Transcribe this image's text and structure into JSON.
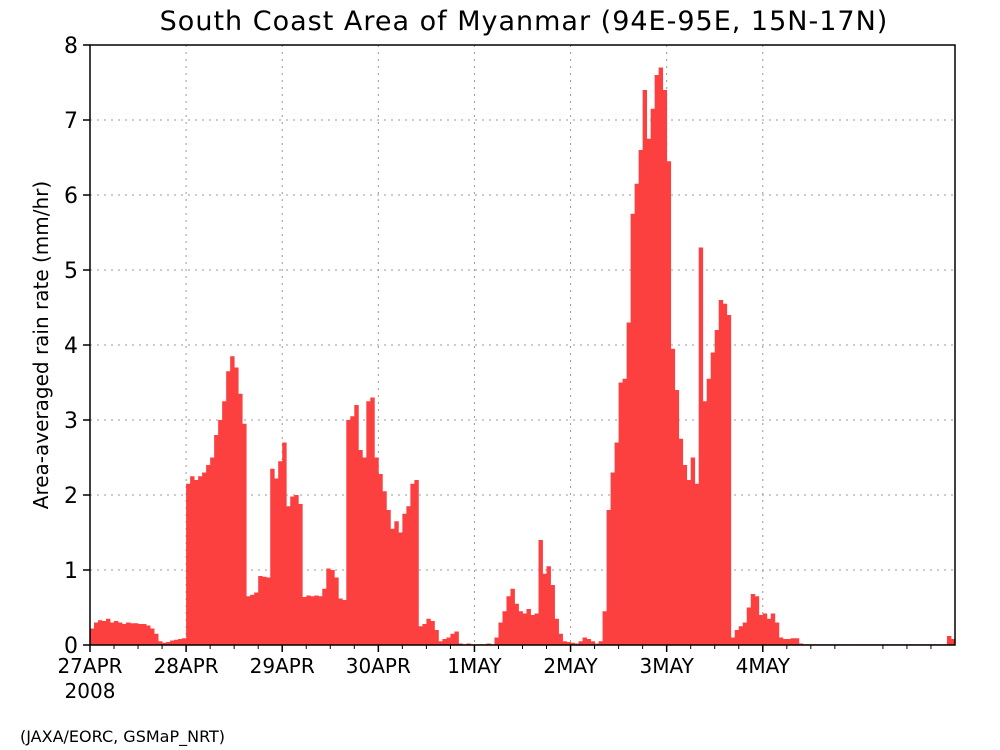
{
  "chart_data": {
    "type": "bar",
    "title": "South Coast Area of Myanmar (94E-95E, 15N-17N)",
    "ylabel": "Area-averaged rain rate (mm/hr)",
    "xlabel": "",
    "year_label": "2008",
    "credit": "(JAXA/EORC, GSMaP_NRT)",
    "x_tick_labels": [
      "27APR",
      "28APR",
      "29APR",
      "30APR",
      "1MAY",
      "2MAY",
      "3MAY",
      "4MAY"
    ],
    "y_ticks": [
      "0",
      "1",
      "2",
      "3",
      "4",
      "5",
      "6",
      "7",
      "8"
    ],
    "ylim": [
      0,
      8
    ],
    "bar_interval": "1 hour",
    "start_time": "27APR2008 00Z",
    "grid": true,
    "bar_color": "#fc4040",
    "values": [
      0.22,
      0.3,
      0.33,
      0.32,
      0.35,
      0.3,
      0.32,
      0.3,
      0.28,
      0.3,
      0.29,
      0.29,
      0.28,
      0.28,
      0.26,
      0.22,
      0.15,
      0.05,
      0.03,
      0.04,
      0.06,
      0.07,
      0.08,
      0.09,
      2.15,
      2.25,
      2.2,
      2.25,
      2.3,
      2.4,
      2.5,
      2.8,
      3.0,
      3.25,
      3.65,
      3.85,
      3.7,
      3.35,
      2.95,
      0.65,
      0.67,
      0.7,
      0.92,
      0.91,
      0.9,
      2.35,
      2.22,
      2.45,
      2.7,
      1.85,
      1.98,
      2.0,
      1.88,
      0.64,
      0.66,
      0.65,
      0.66,
      0.65,
      0.75,
      1.02,
      1.0,
      0.9,
      0.62,
      0.6,
      3.0,
      3.05,
      3.2,
      2.6,
      2.5,
      3.25,
      3.3,
      2.5,
      2.28,
      2.05,
      1.8,
      1.55,
      1.65,
      1.5,
      1.75,
      1.85,
      2.15,
      2.2,
      0.25,
      0.28,
      0.35,
      0.32,
      0.2,
      0.05,
      0.08,
      0.1,
      0.15,
      0.18,
      0.02,
      0.01,
      0.02,
      0.01,
      0.01,
      0.01,
      0.01,
      0.02,
      0.01,
      0.1,
      0.3,
      0.45,
      0.65,
      0.75,
      0.55,
      0.45,
      0.42,
      0.48,
      0.4,
      0.42,
      1.4,
      0.95,
      1.05,
      0.8,
      0.35,
      0.15,
      0.05,
      0.04,
      0.03,
      0.02,
      0.05,
      0.1,
      0.08,
      0.05,
      0.02,
      0.05,
      0.45,
      1.8,
      2.3,
      2.7,
      3.5,
      3.55,
      4.3,
      5.75,
      6.15,
      6.6,
      7.4,
      6.75,
      7.15,
      7.6,
      7.7,
      7.4,
      6.45,
      3.95,
      3.4,
      2.75,
      2.4,
      2.2,
      2.5,
      2.15,
      5.3,
      3.25,
      3.55,
      3.9,
      4.2,
      4.6,
      4.55,
      4.4,
      0.1,
      0.2,
      0.25,
      0.3,
      0.5,
      0.68,
      0.65,
      0.4,
      0.42,
      0.35,
      0.42,
      0.3,
      0.1,
      0.08,
      0.08,
      0.09,
      0.09,
      0.02,
      0.01,
      0.01,
      0.01,
      0.01,
      0.01,
      0.01,
      0.01,
      0.01,
      0.01,
      0.01,
      0.01,
      0.01,
      0.01,
      0.01,
      0.01,
      0.01,
      0.01,
      0.01,
      0.01,
      0.01,
      0.01,
      0.01,
      0.01,
      0.01,
      0.01,
      0.01,
      0.01,
      0.01,
      0.01,
      0.01,
      0.01,
      0.01,
      0.01,
      0.01,
      0.01,
      0.01,
      0.12,
      0.08
    ]
  }
}
